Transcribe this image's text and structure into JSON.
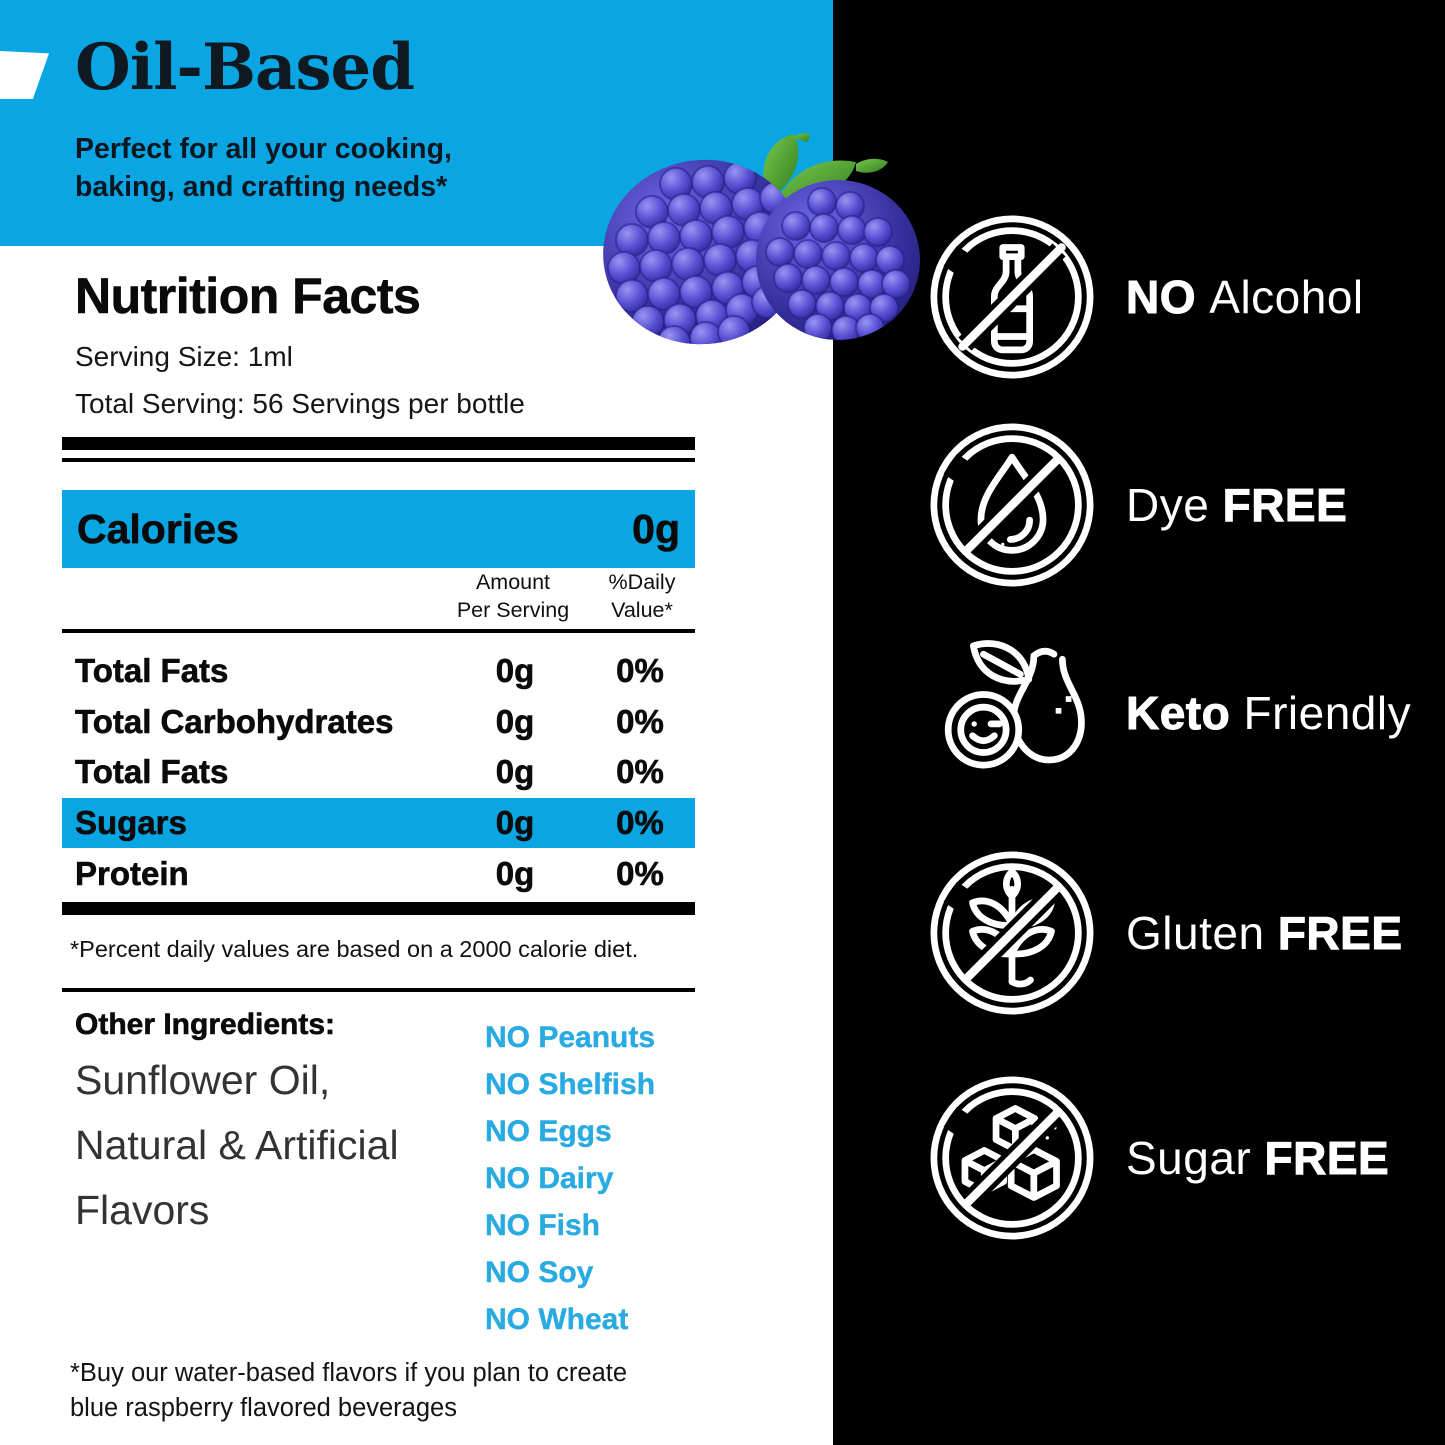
{
  "banner": {
    "title": "Oil-Based",
    "subtitle": "Perfect for all your cooking,\nbaking, and crafting needs*"
  },
  "nutrition": {
    "title": "Nutrition Facts",
    "serving_size": "Serving Size: 1ml",
    "total_serving": "Total Serving: 56 Servings per bottle",
    "calories_label": "Calories",
    "calories_value": "0g",
    "col_amount": "Amount\nPer Serving",
    "col_dv": "%Daily\nValue*",
    "rows": [
      {
        "label": "Total Fats",
        "amount": "0g",
        "dv": "0%",
        "highlight": false
      },
      {
        "label": "Total Carbohydrates",
        "amount": "0g",
        "dv": "0%",
        "highlight": false
      },
      {
        "label": "Total Fats",
        "amount": "0g",
        "dv": "0%",
        "highlight": false
      },
      {
        "label": "Sugars",
        "amount": "0g",
        "dv": "0%",
        "highlight": true
      },
      {
        "label": "Protein",
        "amount": "0g",
        "dv": "0%",
        "highlight": false
      }
    ],
    "footnote": "*Percent daily values are based on a 2000 calorie diet."
  },
  "ingredients": {
    "heading": "Other Ingredients:",
    "lines": [
      "Sunflower Oil,",
      "Natural & Artificial",
      "Flavors"
    ]
  },
  "allergens": [
    "NO Peanuts",
    "NO Shelfish",
    "NO Eggs",
    "NO Dairy",
    "NO Fish",
    "NO Soy",
    "NO Wheat"
  ],
  "bottom_note": "*Buy our water-based flavors if you plan to create\nblue raspberry flavored beverages",
  "badges": [
    {
      "icon": "no-alcohol-icon",
      "parts": [
        {
          "text": "NO ",
          "bold": true
        },
        {
          "text": "Alcohol",
          "bold": false
        }
      ]
    },
    {
      "icon": "dye-free-icon",
      "parts": [
        {
          "text": "Dye ",
          "bold": false
        },
        {
          "text": "FREE",
          "bold": true
        }
      ]
    },
    {
      "icon": "keto-friendly-icon",
      "parts": [
        {
          "text": "Keto ",
          "bold": true
        },
        {
          "text": "Friendly",
          "bold": false
        }
      ]
    },
    {
      "icon": "gluten-free-icon",
      "parts": [
        {
          "text": "Gluten ",
          "bold": false
        },
        {
          "text": "FREE",
          "bold": true
        }
      ]
    },
    {
      "icon": "sugar-free-icon",
      "parts": [
        {
          "text": "Sugar ",
          "bold": false
        },
        {
          "text": "FREE",
          "bold": true
        }
      ]
    }
  ],
  "colors": {
    "accent_blue": "#0aa6e4",
    "allergen_blue": "#29abe2",
    "panel_black": "#000000",
    "berry_blue": "#4d45cc",
    "leaf_green": "#3f8f28",
    "title_dark": "#0f1922",
    "badge_white": "#ffffff"
  }
}
